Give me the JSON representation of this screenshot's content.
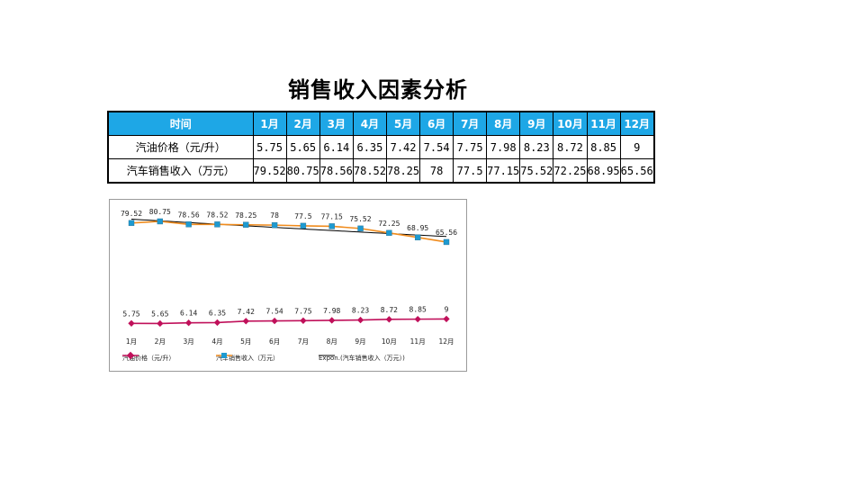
{
  "title": "销售收入因素分析",
  "table": {
    "header_label": "时间",
    "months": [
      "1月",
      "2月",
      "3月",
      "4月",
      "5月",
      "6月",
      "7月",
      "8月",
      "9月",
      "10月",
      "11月",
      "12月"
    ],
    "rows": [
      {
        "label": "汽油价格（元/升）",
        "values": [
          "5.75",
          "5.65",
          "6.14",
          "6.35",
          "7.42",
          "7.54",
          "7.75",
          "7.98",
          "8.23",
          "8.72",
          "8.85",
          "9"
        ]
      },
      {
        "label": "汽车销售收入（万元）",
        "values": [
          "79.52",
          "80.75",
          "78.56",
          "78.52",
          "78.25",
          "78",
          "77.5",
          "77.15",
          "75.52",
          "72.25",
          "68.95",
          "65.56"
        ]
      }
    ]
  },
  "chart_data": {
    "type": "line",
    "categories": [
      "1月",
      "2月",
      "3月",
      "4月",
      "5月",
      "6月",
      "7月",
      "8月",
      "9月",
      "10月",
      "11月",
      "12月"
    ],
    "series": [
      {
        "name": "汽油价格（元/升）",
        "color": "#c0105a",
        "marker": "diamond",
        "values": [
          5.75,
          5.65,
          6.14,
          6.35,
          7.42,
          7.54,
          7.75,
          7.98,
          8.23,
          8.72,
          8.85,
          9
        ],
        "labels": [
          "5.75",
          "5.65",
          "6.14",
          "6.35",
          "7.42",
          "7.54",
          "7.75",
          "7.98",
          "8.23",
          "8.72",
          "8.85",
          "9"
        ]
      },
      {
        "name": "汽车销售收入（万元）",
        "color": "#f08c1e",
        "marker": "square",
        "marker_color": "#1e9ad0",
        "values": [
          79.52,
          80.75,
          78.56,
          78.52,
          78.25,
          78,
          77.5,
          77.15,
          75.52,
          72.25,
          68.95,
          65.56
        ],
        "labels": [
          "79.52",
          "80.75",
          "78.56",
          "78.52",
          "78.25",
          "78",
          "77.5",
          "77.15",
          "75.52",
          "72.25",
          "68.95",
          "65.56"
        ]
      }
    ],
    "trendline": {
      "name": "Expon.(汽车销售收入（万元）)",
      "type": "exponential",
      "of_series": 1,
      "color": "#000000"
    },
    "ylim": [
      0,
      90
    ],
    "grid": false,
    "legend": "bottom"
  }
}
